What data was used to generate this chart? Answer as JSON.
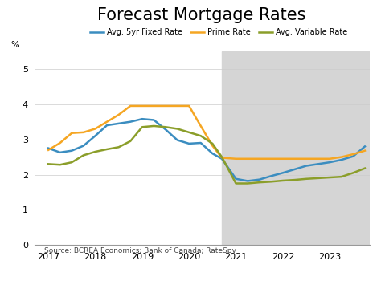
{
  "title": "Forecast Mortgage Rates",
  "ylabel": "%",
  "source": "Source: BCREA Economics; Bank of Canada; RateSpy",
  "ylim": [
    0,
    5.5
  ],
  "yticks": [
    0,
    1,
    2,
    3,
    4,
    5
  ],
  "xlim": [
    2016.7,
    2023.85
  ],
  "xticks": [
    2017,
    2018,
    2019,
    2020,
    2021,
    2022,
    2023
  ],
  "forecast_start": 2020.7,
  "forecast_end": 2023.85,
  "forecast_color": "#d5d5d5",
  "legend_labels": [
    "Avg. 5yr Fixed Rate",
    "Prime Rate",
    "Avg. Variable Rate"
  ],
  "colors": {
    "fixed": "#3B8DC0",
    "prime": "#F5A623",
    "variable": "#8B9E2A"
  },
  "fixed_rate": {
    "x": [
      2017.0,
      2017.25,
      2017.5,
      2017.75,
      2018.0,
      2018.25,
      2018.5,
      2018.75,
      2019.0,
      2019.25,
      2019.5,
      2019.75,
      2020.0,
      2020.25,
      2020.5,
      2020.7,
      2021.0,
      2021.25,
      2021.5,
      2021.75,
      2022.0,
      2022.25,
      2022.5,
      2022.75,
      2023.0,
      2023.25,
      2023.5,
      2023.75
    ],
    "y": [
      2.75,
      2.63,
      2.68,
      2.82,
      3.1,
      3.4,
      3.45,
      3.5,
      3.58,
      3.55,
      3.28,
      2.98,
      2.88,
      2.9,
      2.6,
      2.45,
      1.88,
      1.82,
      1.86,
      1.96,
      2.05,
      2.15,
      2.25,
      2.3,
      2.35,
      2.42,
      2.52,
      2.8
    ]
  },
  "prime_rate": {
    "x": [
      2017.0,
      2017.25,
      2017.5,
      2017.75,
      2018.0,
      2018.25,
      2018.5,
      2018.75,
      2019.0,
      2019.25,
      2019.5,
      2019.75,
      2020.0,
      2020.25,
      2020.5,
      2020.7,
      2021.0,
      2021.25,
      2021.5,
      2021.75,
      2022.0,
      2022.25,
      2022.5,
      2022.75,
      2023.0,
      2023.25,
      2023.5,
      2023.75
    ],
    "y": [
      2.7,
      2.9,
      3.18,
      3.2,
      3.3,
      3.5,
      3.7,
      3.95,
      3.95,
      3.95,
      3.95,
      3.95,
      3.95,
      3.38,
      2.82,
      2.48,
      2.45,
      2.45,
      2.45,
      2.45,
      2.45,
      2.45,
      2.45,
      2.45,
      2.45,
      2.5,
      2.58,
      2.68
    ]
  },
  "variable_rate": {
    "x": [
      2017.0,
      2017.25,
      2017.5,
      2017.75,
      2018.0,
      2018.25,
      2018.5,
      2018.75,
      2019.0,
      2019.25,
      2019.5,
      2019.75,
      2020.0,
      2020.25,
      2020.5,
      2020.7,
      2021.0,
      2021.25,
      2021.5,
      2021.75,
      2022.0,
      2022.25,
      2022.5,
      2022.75,
      2023.0,
      2023.25,
      2023.5,
      2023.75
    ],
    "y": [
      2.3,
      2.28,
      2.35,
      2.55,
      2.65,
      2.72,
      2.78,
      2.95,
      3.35,
      3.38,
      3.35,
      3.3,
      3.2,
      3.1,
      2.88,
      2.5,
      1.75,
      1.75,
      1.78,
      1.8,
      1.83,
      1.85,
      1.88,
      1.9,
      1.92,
      1.94,
      2.05,
      2.18
    ]
  }
}
